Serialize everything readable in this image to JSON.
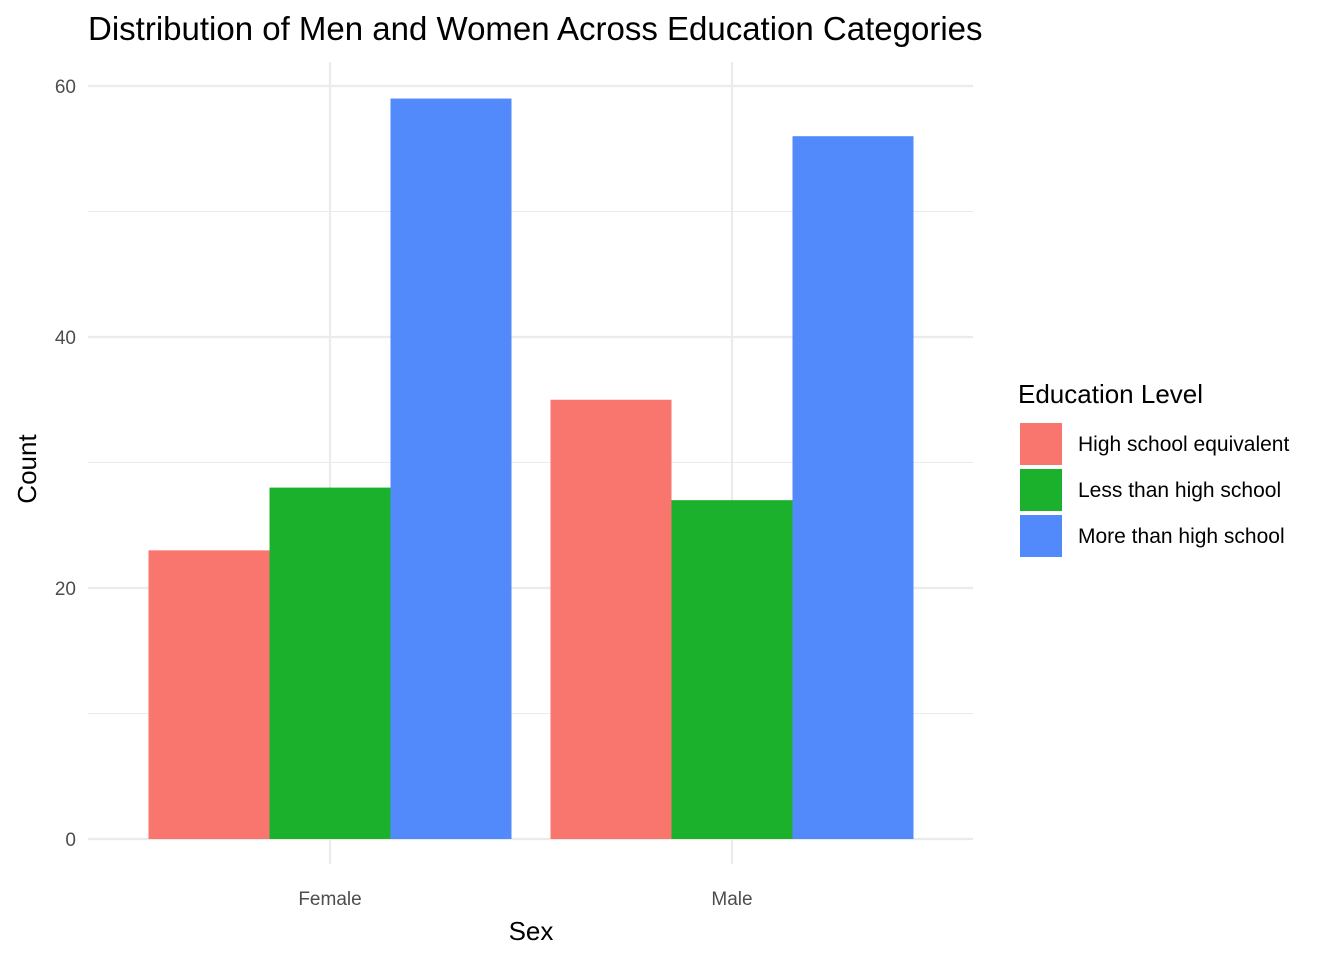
{
  "chart_data": {
    "type": "bar",
    "title": "Distribution of Men and Women Across Education Categories",
    "xlabel": "Sex",
    "ylabel": "Count",
    "categories": [
      "Female",
      "Male"
    ],
    "ylim": [
      0,
      62
    ],
    "yticks": [
      0,
      20,
      40,
      60
    ],
    "y_minor_ticks": [
      10,
      30,
      50
    ],
    "grid": true,
    "legend": {
      "title": "Education Level",
      "position": "right"
    },
    "series": [
      {
        "name": "High school equivalent",
        "color": "#F8766D",
        "values": [
          23,
          35
        ]
      },
      {
        "name": "Less than high school",
        "color": "#1CB12D",
        "values": [
          28,
          27
        ]
      },
      {
        "name": "More than high school",
        "color": "#528AFC",
        "values": [
          59,
          56
        ]
      }
    ]
  }
}
